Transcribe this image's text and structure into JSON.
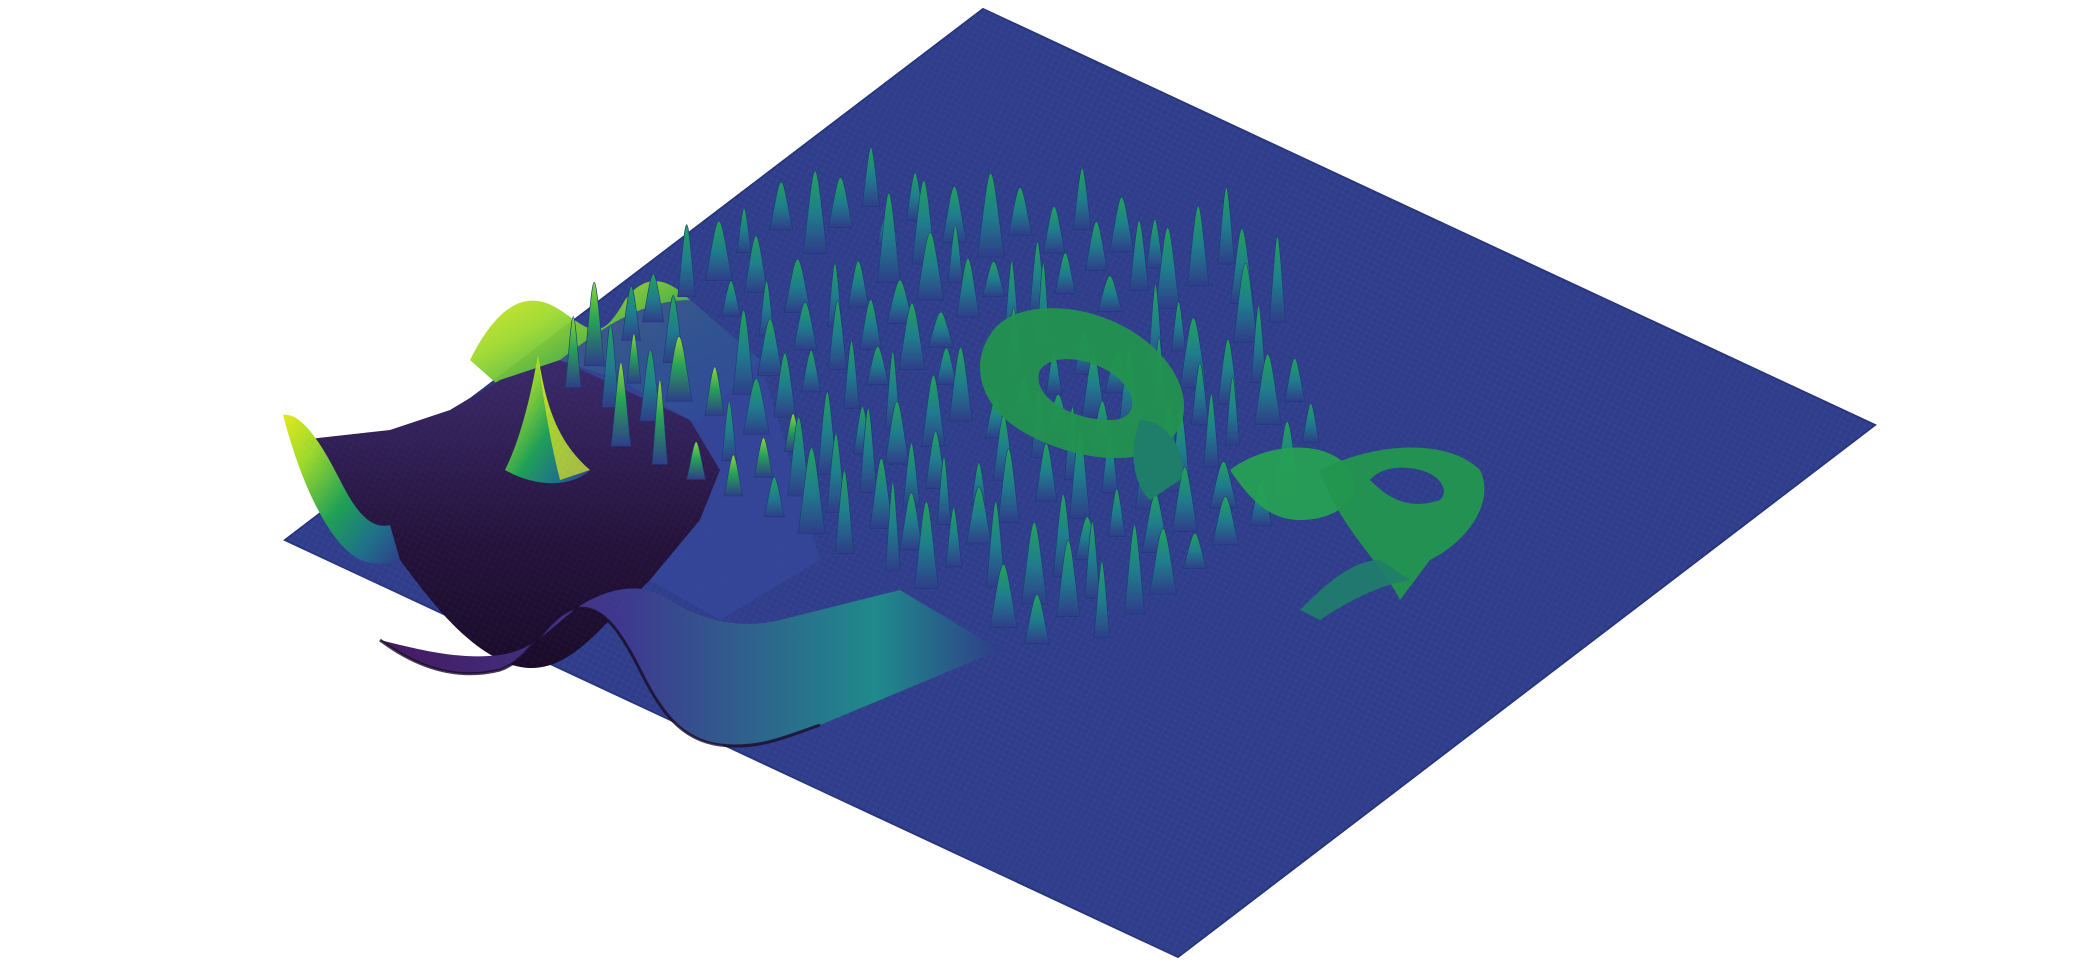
{
  "scene": {
    "subject": "3d-surface-plot",
    "colormap": "viridis",
    "colors": {
      "background": "#ffffff",
      "plane": "#2f3d8a",
      "plane_edge": "#26357d",
      "wire": "#3e58a8",
      "dark": "#25123a",
      "purple": "#45195f",
      "teal": "#1f8a8b",
      "green": "#1fa055",
      "lime": "#9dd92d",
      "yellow": "#e3e81f"
    }
  }
}
